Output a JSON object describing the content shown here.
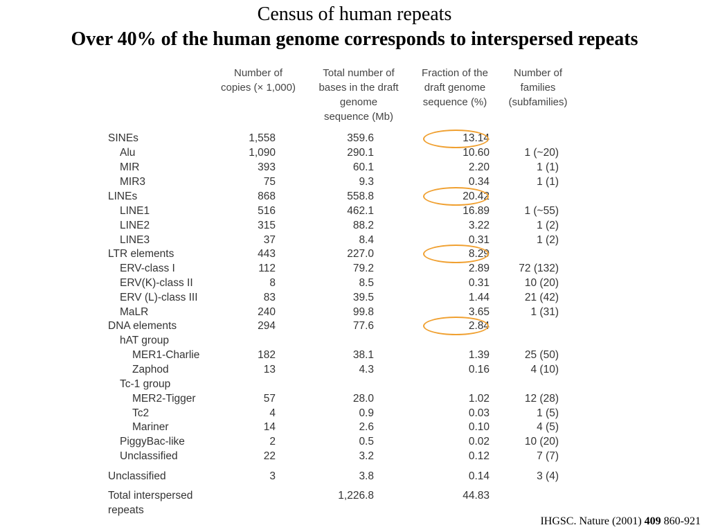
{
  "title": "Census of human repeats",
  "subtitle": "Over 40% of the human genome corresponds to interspersed repeats",
  "headers": {
    "copies": [
      "Number of",
      "copies (× 1,000)"
    ],
    "bases": [
      "Total number of",
      "bases in the draft",
      "genome",
      "sequence (Mb)"
    ],
    "fraction": [
      "Fraction of the",
      "draft genome",
      "sequence (%)"
    ],
    "families": [
      "Number of",
      "families",
      "(subfamilies)"
    ]
  },
  "rows": [
    {
      "label": "SINEs",
      "level": 0,
      "copies": "1,558",
      "bases": "359.6",
      "fraction": "13.14",
      "families": ""
    },
    {
      "label": "Alu",
      "level": 1,
      "copies": "1,090",
      "bases": "290.1",
      "fraction": "10.60",
      "families": "1 (~20)"
    },
    {
      "label": "MIR",
      "level": 1,
      "copies": "393",
      "bases": "60.1",
      "fraction": "2.20",
      "families": "1 (1)"
    },
    {
      "label": "MIR3",
      "level": 1,
      "copies": "75",
      "bases": "9.3",
      "fraction": "0.34",
      "families": "1 (1)"
    },
    {
      "label": "LINEs",
      "level": 0,
      "copies": "868",
      "bases": "558.8",
      "fraction": "20.42",
      "families": ""
    },
    {
      "label": "LINE1",
      "level": 1,
      "copies": "516",
      "bases": "462.1",
      "fraction": "16.89",
      "families": "1 (~55)"
    },
    {
      "label": "LINE2",
      "level": 1,
      "copies": "315",
      "bases": "88.2",
      "fraction": "3.22",
      "families": "1 (2)"
    },
    {
      "label": "LINE3",
      "level": 1,
      "copies": "37",
      "bases": "8.4",
      "fraction": "0.31",
      "families": "1 (2)"
    },
    {
      "label": "LTR elements",
      "level": 0,
      "copies": "443",
      "bases": "227.0",
      "fraction": "8.29",
      "families": ""
    },
    {
      "label": "ERV-class I",
      "level": 1,
      "copies": "112",
      "bases": "79.2",
      "fraction": "2.89",
      "families": "72 (132)"
    },
    {
      "label": "ERV(K)-class II",
      "level": 1,
      "copies": "8",
      "bases": "8.5",
      "fraction": "0.31",
      "families": "10 (20)"
    },
    {
      "label": "ERV (L)-class III",
      "level": 1,
      "copies": "83",
      "bases": "39.5",
      "fraction": "1.44",
      "families": "21 (42)"
    },
    {
      "label": "MaLR",
      "level": 1,
      "copies": "240",
      "bases": "99.8",
      "fraction": "3.65",
      "families": "1 (31)"
    },
    {
      "label": "DNA elements",
      "level": 0,
      "copies": "294",
      "bases": "77.6",
      "fraction": "2.84",
      "families": ""
    },
    {
      "label": "hAT group",
      "level": 1,
      "copies": "",
      "bases": "",
      "fraction": "",
      "families": ""
    },
    {
      "label": "MER1-Charlie",
      "level": 2,
      "copies": "182",
      "bases": "38.1",
      "fraction": "1.39",
      "families": "25 (50)"
    },
    {
      "label": "Zaphod",
      "level": 2,
      "copies": "13",
      "bases": "4.3",
      "fraction": "0.16",
      "families": "4 (10)"
    },
    {
      "label": "Tc-1 group",
      "level": 1,
      "copies": "",
      "bases": "",
      "fraction": "",
      "families": ""
    },
    {
      "label": "MER2-Tigger",
      "level": 2,
      "copies": "57",
      "bases": "28.0",
      "fraction": "1.02",
      "families": "12 (28)"
    },
    {
      "label": "Tc2",
      "level": 2,
      "copies": "4",
      "bases": "0.9",
      "fraction": "0.03",
      "families": "1 (5)"
    },
    {
      "label": "Mariner",
      "level": 2,
      "copies": "14",
      "bases": "2.6",
      "fraction": "0.10",
      "families": "4 (5)"
    },
    {
      "label": "PiggyBac-like",
      "level": 1,
      "copies": "2",
      "bases": "0.5",
      "fraction": "0.02",
      "families": "10 (20)"
    },
    {
      "label": "Unclassified",
      "level": 1,
      "copies": "22",
      "bases": "3.2",
      "fraction": "0.12",
      "families": "7 (7)"
    },
    {
      "label": "Unclassified",
      "level": 0,
      "copies": "3",
      "bases": "3.8",
      "fraction": "0.14",
      "families": "3 (4)"
    }
  ],
  "total": {
    "label": [
      "Total interspersed",
      "repeats"
    ],
    "copies": "",
    "bases": "1,226.8",
    "fraction": "44.83",
    "families": ""
  },
  "highlight_color": "#f0a030",
  "citation": {
    "prefix": "IHGSC. Nature (2001) ",
    "volume": "409",
    "pages": " 860-921"
  }
}
